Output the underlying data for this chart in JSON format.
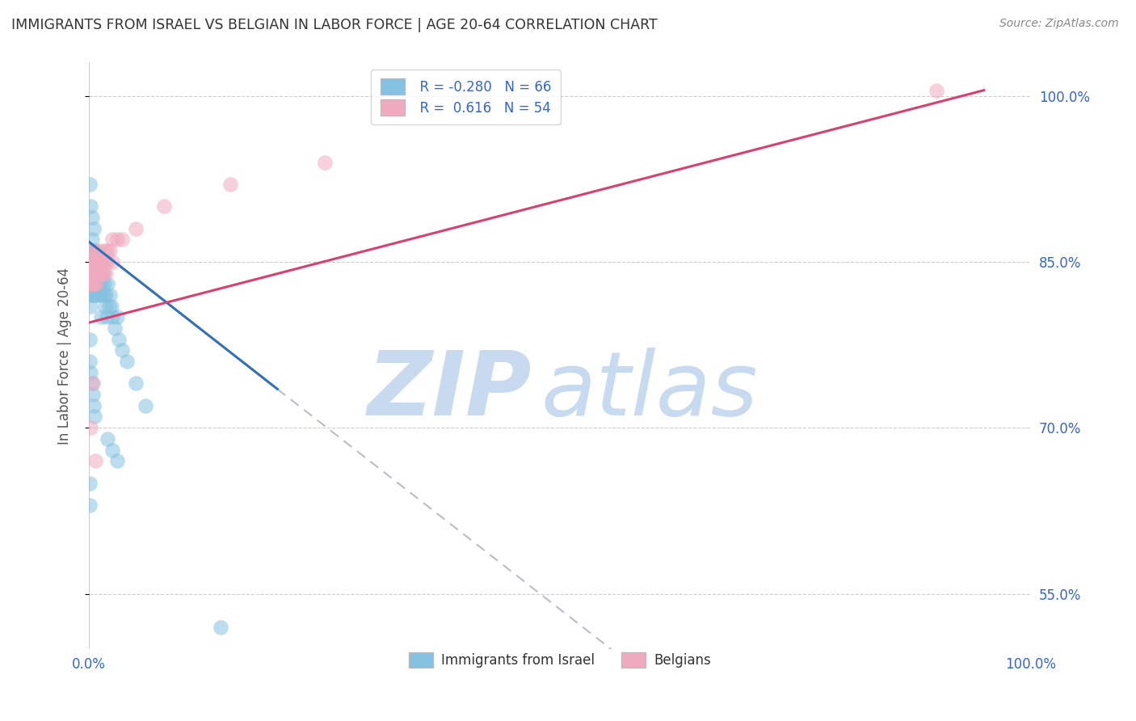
{
  "title": "IMMIGRANTS FROM ISRAEL VS BELGIAN IN LABOR FORCE | AGE 20-64 CORRELATION CHART",
  "source": "Source: ZipAtlas.com",
  "ylabel": "In Labor Force | Age 20-64",
  "legend_labels": [
    "Immigrants from Israel",
    "Belgians"
  ],
  "legend_r": [
    "R = -0.280",
    "R =  0.616"
  ],
  "legend_n": [
    "N = 66",
    "N = 54"
  ],
  "blue_color": "#85c1e0",
  "pink_color": "#f0aabe",
  "blue_line_color": "#3070b8",
  "pink_line_color": "#d84070",
  "dashed_line_color": "#bbbbcc",
  "watermark_zip": "ZIP",
  "watermark_atlas": "atlas",
  "watermark_color_zip": "#c8daf0",
  "watermark_color_atlas": "#c8daf0",
  "background_color": "#ffffff",
  "grid_color": "#cccccc",
  "title_color": "#333333",
  "axis_label_color": "#555555",
  "tick_label_color": "#3366cc",
  "source_color": "#888888",
  "xlim": [
    0.0,
    1.0
  ],
  "ylim": [
    0.5,
    1.03
  ],
  "yticks": [
    0.55,
    0.7,
    0.85,
    1.0
  ],
  "ytick_labels": [
    "55.0%",
    "70.0%",
    "85.0%",
    "100.0%"
  ],
  "xticks": [
    0.0,
    1.0
  ],
  "xtick_labels": [
    "0.0%",
    "100.0%"
  ],
  "blue_scatter_x": [
    0.001,
    0.001,
    0.001,
    0.002,
    0.002,
    0.002,
    0.002,
    0.003,
    0.003,
    0.003,
    0.004,
    0.004,
    0.004,
    0.005,
    0.005,
    0.005,
    0.006,
    0.006,
    0.007,
    0.007,
    0.007,
    0.008,
    0.008,
    0.009,
    0.009,
    0.01,
    0.01,
    0.011,
    0.012,
    0.013,
    0.013,
    0.014,
    0.015,
    0.015,
    0.016,
    0.017,
    0.018,
    0.019,
    0.02,
    0.021,
    0.022,
    0.024,
    0.025,
    0.027,
    0.03,
    0.032,
    0.035,
    0.04,
    0.05,
    0.06,
    0.001,
    0.001,
    0.002,
    0.003,
    0.004,
    0.005,
    0.006,
    0.02,
    0.025,
    0.03,
    0.001,
    0.002,
    0.003,
    0.001,
    0.001,
    0.14
  ],
  "blue_scatter_y": [
    0.84,
    0.83,
    0.85,
    0.86,
    0.84,
    0.82,
    0.81,
    0.87,
    0.85,
    0.84,
    0.86,
    0.83,
    0.82,
    0.88,
    0.84,
    0.83,
    0.85,
    0.82,
    0.86,
    0.84,
    0.82,
    0.85,
    0.83,
    0.84,
    0.82,
    0.85,
    0.83,
    0.83,
    0.84,
    0.82,
    0.8,
    0.83,
    0.84,
    0.82,
    0.83,
    0.81,
    0.82,
    0.8,
    0.83,
    0.81,
    0.82,
    0.81,
    0.8,
    0.79,
    0.8,
    0.78,
    0.77,
    0.76,
    0.74,
    0.72,
    0.78,
    0.76,
    0.75,
    0.74,
    0.73,
    0.72,
    0.71,
    0.69,
    0.68,
    0.67,
    0.92,
    0.9,
    0.89,
    0.65,
    0.63,
    0.52
  ],
  "pink_scatter_x": [
    0.001,
    0.001,
    0.002,
    0.002,
    0.003,
    0.003,
    0.004,
    0.004,
    0.005,
    0.005,
    0.006,
    0.006,
    0.007,
    0.007,
    0.008,
    0.009,
    0.01,
    0.01,
    0.011,
    0.012,
    0.013,
    0.014,
    0.015,
    0.016,
    0.017,
    0.018,
    0.02,
    0.022,
    0.025,
    0.03,
    0.001,
    0.002,
    0.003,
    0.004,
    0.006,
    0.008,
    0.01,
    0.015,
    0.02,
    0.025,
    0.001,
    0.003,
    0.005,
    0.008,
    0.012,
    0.035,
    0.05,
    0.08,
    0.15,
    0.25,
    0.002,
    0.004,
    0.007,
    0.9
  ],
  "pink_scatter_y": [
    0.85,
    0.83,
    0.86,
    0.84,
    0.85,
    0.83,
    0.86,
    0.84,
    0.85,
    0.84,
    0.85,
    0.84,
    0.85,
    0.84,
    0.83,
    0.85,
    0.84,
    0.86,
    0.84,
    0.85,
    0.84,
    0.85,
    0.84,
    0.86,
    0.85,
    0.84,
    0.85,
    0.86,
    0.85,
    0.87,
    0.84,
    0.85,
    0.84,
    0.84,
    0.83,
    0.85,
    0.84,
    0.85,
    0.86,
    0.87,
    0.83,
    0.83,
    0.84,
    0.84,
    0.85,
    0.87,
    0.88,
    0.9,
    0.92,
    0.94,
    0.7,
    0.74,
    0.67,
    1.005
  ],
  "blue_line": {
    "x": [
      0.0,
      0.2
    ],
    "y": [
      0.868,
      0.735
    ]
  },
  "dashed_line": {
    "x": [
      0.2,
      1.0
    ],
    "y": [
      0.735,
      0.204
    ]
  },
  "pink_line": {
    "x": [
      0.0,
      0.95
    ],
    "y": [
      0.795,
      1.005
    ]
  }
}
